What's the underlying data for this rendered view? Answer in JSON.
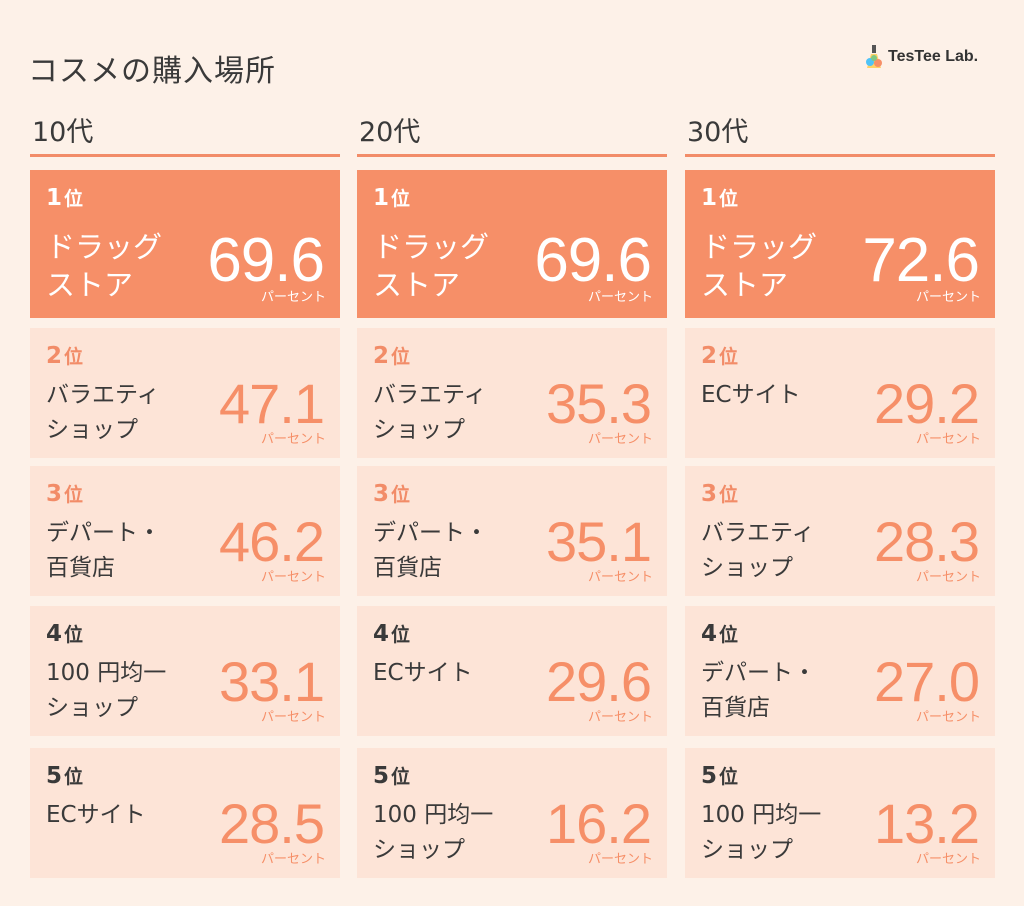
{
  "title": "コスメの購入場所",
  "brand": {
    "name": "TesTee Lab.",
    "icon": "flask-icon"
  },
  "rank_suffix": "位",
  "unit": "パーセント",
  "colors": {
    "accent": "#f68f68",
    "card_bg": "#fde4d7",
    "page_bg": "#fdf1e8"
  },
  "columns": [
    {
      "label": "10代",
      "items": [
        {
          "rank": "1",
          "place_lines": [
            "ドラッグ",
            "ストア"
          ],
          "value": "69.6"
        },
        {
          "rank": "2",
          "place_lines": [
            "バラエティ",
            "ショップ"
          ],
          "value": "47.1"
        },
        {
          "rank": "3",
          "place_lines": [
            "デパート・",
            "百貨店"
          ],
          "value": "46.2"
        },
        {
          "rank": "4",
          "place_lines": [
            "100 円均一",
            "ショップ"
          ],
          "value": "33.1"
        },
        {
          "rank": "5",
          "place_lines": [
            "ECサイト",
            ""
          ],
          "value": "28.5"
        }
      ]
    },
    {
      "label": "20代",
      "items": [
        {
          "rank": "1",
          "place_lines": [
            "ドラッグ",
            "ストア"
          ],
          "value": "69.6"
        },
        {
          "rank": "2",
          "place_lines": [
            "バラエティ",
            "ショップ"
          ],
          "value": "35.3"
        },
        {
          "rank": "3",
          "place_lines": [
            "デパート・",
            "百貨店"
          ],
          "value": "35.1"
        },
        {
          "rank": "4",
          "place_lines": [
            "ECサイト",
            ""
          ],
          "value": "29.6"
        },
        {
          "rank": "5",
          "place_lines": [
            "100 円均一",
            "ショップ"
          ],
          "value": "16.2"
        }
      ]
    },
    {
      "label": "30代",
      "items": [
        {
          "rank": "1",
          "place_lines": [
            "ドラッグ",
            "ストア"
          ],
          "value": "72.6"
        },
        {
          "rank": "2",
          "place_lines": [
            "ECサイト",
            ""
          ],
          "value": "29.2"
        },
        {
          "rank": "3",
          "place_lines": [
            "バラエティ",
            "ショップ"
          ],
          "value": "28.3"
        },
        {
          "rank": "4",
          "place_lines": [
            "デパート・",
            "百貨店"
          ],
          "value": "27.0"
        },
        {
          "rank": "5",
          "place_lines": [
            "100 円均一",
            "ショップ"
          ],
          "value": "13.2"
        }
      ]
    }
  ]
}
